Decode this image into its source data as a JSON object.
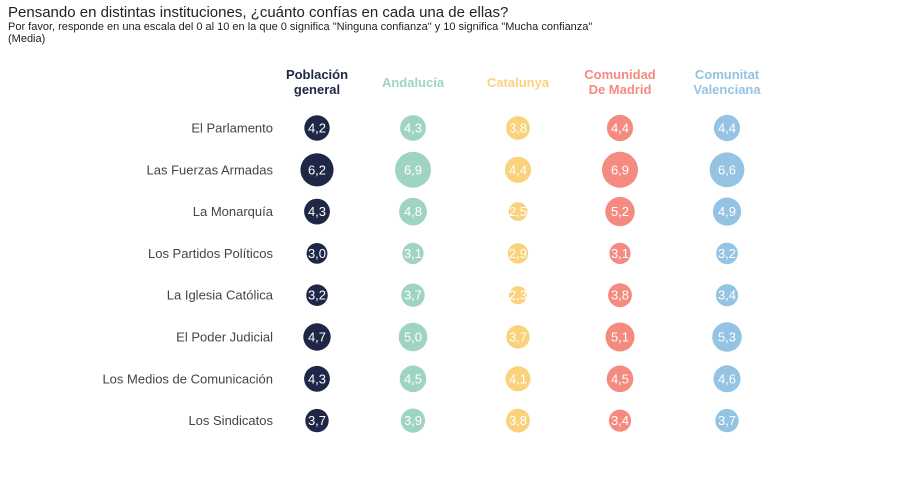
{
  "title": "Pensando en distintas instituciones, ¿cuánto confías en cada una de ellas?",
  "subtitle": "Por favor, responde en una escala del 0 al 10 en la que 0 significa \"Ninguna confianza\" y 10 significa \"Mucha confianza\"",
  "note": "(Media)",
  "chart_data": {
    "type": "bubble-table",
    "categories": [
      "El Parlamento",
      "Las Fuerzas Armadas",
      "La Monarquía",
      "Los Partidos Políticos",
      "La Iglesia Católica",
      "El Poder Judicial",
      "Los Medios de Comunicación",
      "Los Sindicatos"
    ],
    "series": [
      {
        "name": [
          "Población",
          "general"
        ],
        "color": "#1e2746",
        "values": [
          "4,2",
          "6,2",
          "4,3",
          "3,0",
          "3,2",
          "4,7",
          "4,3",
          "3,7"
        ]
      },
      {
        "name": [
          "Andalucía"
        ],
        "color": "#9fd5c0",
        "values": [
          "4,3",
          "6,9",
          "4,8",
          "3,1",
          "3,7",
          "5,0",
          "4,5",
          "3,9"
        ]
      },
      {
        "name": [
          "Catalunya"
        ],
        "color": "#f9d27b",
        "values": [
          "3,8",
          "4,4",
          "2,5",
          "2,9",
          "2,3",
          "3,7",
          "4,1",
          "3,8"
        ]
      },
      {
        "name": [
          "Comunidad",
          "De Madrid"
        ],
        "color": "#f58a80",
        "values": [
          "4,4",
          "6,9",
          "5,2",
          "3,1",
          "3,8",
          "5,1",
          "4,5",
          "3,4"
        ]
      },
      {
        "name": [
          "Comunitat",
          "Valenciana"
        ],
        "color": "#94c3e3",
        "values": [
          "4,4",
          "6,6",
          "4,9",
          "3,2",
          "3,4",
          "5,3",
          "4,6",
          "3,7"
        ]
      }
    ]
  }
}
